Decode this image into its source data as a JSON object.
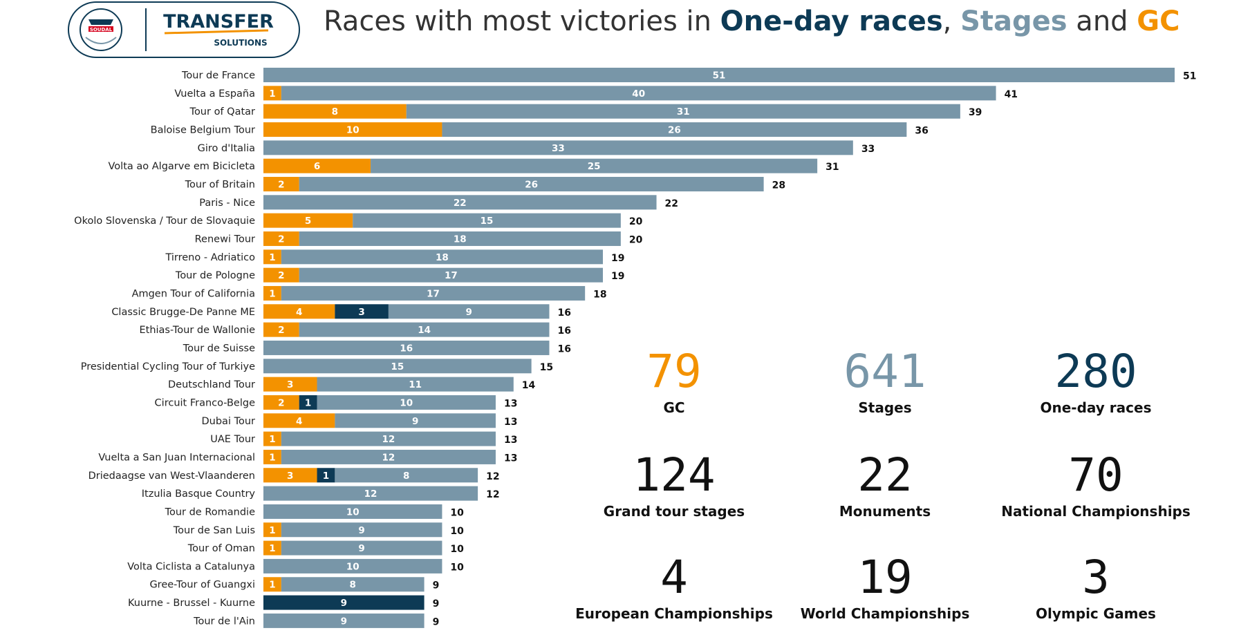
{
  "logo": {
    "brand_top": "TRANSFER",
    "brand_bottom": "SOLUTIONS",
    "badge_text": "SOUDAL"
  },
  "title": {
    "prefix": "Races with most victories in ",
    "one_day": "One-day races",
    "sep": ", ",
    "stages": "Stages",
    "and": " and ",
    "gc": "GC"
  },
  "colors": {
    "gc": "#f39200",
    "one_day": "#0d3a55",
    "stages": "#7896a8",
    "text": "#222222"
  },
  "chart_data": {
    "type": "bar",
    "orientation": "horizontal",
    "stacked": true,
    "categories": [
      "Tour de France",
      "Vuelta a España",
      "Tour of Qatar",
      "Baloise Belgium Tour",
      "Giro d'Italia",
      "Volta ao Algarve em Bicicleta",
      "Tour of Britain",
      "Paris - Nice",
      "Okolo Slovenska / Tour de Slovaquie",
      "Renewi Tour",
      "Tirreno - Adriatico",
      "Tour de Pologne",
      "Amgen Tour of California",
      "Classic Brugge-De Panne ME",
      "Ethias-Tour de Wallonie",
      "Tour de Suisse",
      "Presidential Cycling Tour of Turkiye",
      "Deutschland Tour",
      "Circuit Franco-Belge",
      "Dubai Tour",
      "UAE Tour",
      "Vuelta a San Juan Internacional",
      "Driedaagse van West-Vlaanderen",
      "Itzulia Basque Country",
      "Tour de Romandie",
      "Tour de San Luis",
      "Tour of Oman",
      "Volta Ciclista a Catalunya",
      "Gree-Tour of Guangxi",
      "Kuurne - Brussel - Kuurne",
      "Tour de l'Ain"
    ],
    "series": [
      {
        "name": "GC",
        "color": "#f39200",
        "values": [
          0,
          1,
          8,
          10,
          0,
          6,
          2,
          0,
          5,
          2,
          1,
          2,
          1,
          4,
          2,
          0,
          0,
          3,
          2,
          4,
          1,
          1,
          3,
          0,
          0,
          1,
          1,
          0,
          1,
          0,
          0
        ]
      },
      {
        "name": "One-day races",
        "color": "#0d3a55",
        "values": [
          0,
          0,
          0,
          0,
          0,
          0,
          0,
          0,
          0,
          0,
          0,
          0,
          0,
          3,
          0,
          0,
          0,
          0,
          1,
          0,
          0,
          0,
          1,
          0,
          0,
          0,
          0,
          0,
          0,
          9,
          0
        ]
      },
      {
        "name": "Stages",
        "color": "#7896a8",
        "values": [
          51,
          40,
          31,
          26,
          33,
          25,
          26,
          22,
          15,
          18,
          18,
          17,
          17,
          9,
          14,
          16,
          15,
          11,
          10,
          9,
          12,
          12,
          8,
          12,
          10,
          9,
          9,
          10,
          8,
          0,
          9
        ]
      }
    ],
    "totals": [
      51,
      41,
      39,
      36,
      33,
      31,
      28,
      22,
      20,
      20,
      19,
      19,
      18,
      16,
      16,
      16,
      15,
      14,
      13,
      13,
      13,
      13,
      12,
      12,
      10,
      10,
      10,
      10,
      9,
      9,
      9
    ],
    "xlim": [
      0,
      51
    ]
  },
  "stats": [
    {
      "value": "79",
      "label": "GC",
      "color": "#f39200"
    },
    {
      "value": "641",
      "label": "Stages",
      "color": "#7896a8"
    },
    {
      "value": "280",
      "label": "One-day races",
      "color": "#0d3a55"
    },
    {
      "value": "124",
      "label": "Grand tour stages",
      "color": "#111111"
    },
    {
      "value": "22",
      "label": "Monuments",
      "color": "#111111"
    },
    {
      "value": "70",
      "label": "National Championships",
      "color": "#111111"
    },
    {
      "value": "4",
      "label": "European Championships",
      "color": "#111111"
    },
    {
      "value": "19",
      "label": "World Championships",
      "color": "#111111"
    },
    {
      "value": "3",
      "label": "Olympic Games",
      "color": "#111111"
    }
  ]
}
